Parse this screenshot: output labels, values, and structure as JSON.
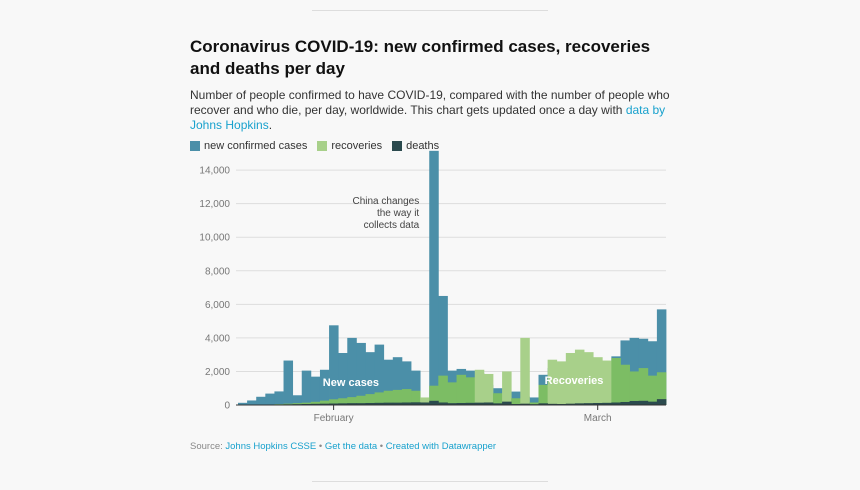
{
  "title": "Coronavirus COVID-19: new confirmed cases, recoveries and deaths per day",
  "description": {
    "text": "Number of people confirmed to have COVID-19, compared with the number of people who recover and who die, per day, worldwide. This chart gets updated once a day with ",
    "link": "data by Johns Hopkins",
    "end": "."
  },
  "colors": {
    "cases": "#4b8fa8",
    "recoveries": "#a8d08a",
    "recoveries_dark": "#7cbd64",
    "deaths": "#2b4a4e",
    "grid": "#dddddd",
    "link": "#18a1cd"
  },
  "source": {
    "prefix": "Source: ",
    "source_link": "Johns Hopkins CSSE",
    "sep1": " • ",
    "get_data": "Get the data",
    "sep2": " • ",
    "created": "Created with Datawrapper"
  },
  "chart_data": {
    "type": "area",
    "x_ticks": [
      {
        "label": "February",
        "index": 10
      },
      {
        "label": "March",
        "index": 39
      }
    ],
    "y_ticks": [
      "0",
      "2,000",
      "4,000",
      "6,000",
      "8,000",
      "10,000",
      "12,000",
      "14,000"
    ],
    "ylim": [
      0,
      15200
    ],
    "series": [
      {
        "name": "new confirmed cases",
        "values": [
          130,
          270,
          490,
          680,
          810,
          2650,
          580,
          2050,
          1690,
          2100,
          4750,
          3100,
          4000,
          3700,
          3150,
          3600,
          2700,
          2850,
          2600,
          2050,
          400,
          15150,
          6500,
          2050,
          2150,
          2050,
          1900,
          1200,
          1000,
          400,
          800,
          500,
          450,
          1800,
          2200,
          2250,
          2450,
          2500,
          1950,
          2300,
          2500,
          2900,
          3850,
          4000,
          3950,
          3800,
          5700
        ]
      },
      {
        "name": "recoveries",
        "values": [
          0,
          10,
          20,
          30,
          50,
          80,
          110,
          140,
          190,
          260,
          340,
          400,
          470,
          550,
          650,
          750,
          850,
          900,
          950,
          850,
          450,
          1150,
          1750,
          1350,
          1800,
          1650,
          2100,
          1850,
          700,
          2000,
          400,
          4000,
          150,
          1200,
          2700,
          2600,
          3100,
          3300,
          3150,
          2850,
          2650,
          2800,
          2400,
          2000,
          2200,
          1750,
          1950
        ]
      },
      {
        "name": "deaths",
        "values": [
          10,
          15,
          20,
          25,
          30,
          40,
          50,
          60,
          70,
          80,
          90,
          100,
          110,
          110,
          120,
          130,
          140,
          140,
          150,
          160,
          150,
          250,
          150,
          110,
          120,
          130,
          140,
          150,
          100,
          200,
          60,
          80,
          50,
          100,
          70,
          60,
          80,
          100,
          110,
          120,
          130,
          150,
          180,
          240,
          250,
          200,
          350
        ]
      }
    ],
    "legend": [
      "new confirmed cases",
      "recoveries",
      "deaths"
    ],
    "legend_placement": "top-left",
    "annotations": [
      "China changes",
      "the way it",
      "collects data"
    ],
    "inline_labels": {
      "cases": "New cases",
      "recoveries": "Recoveries"
    },
    "grid": true
  }
}
